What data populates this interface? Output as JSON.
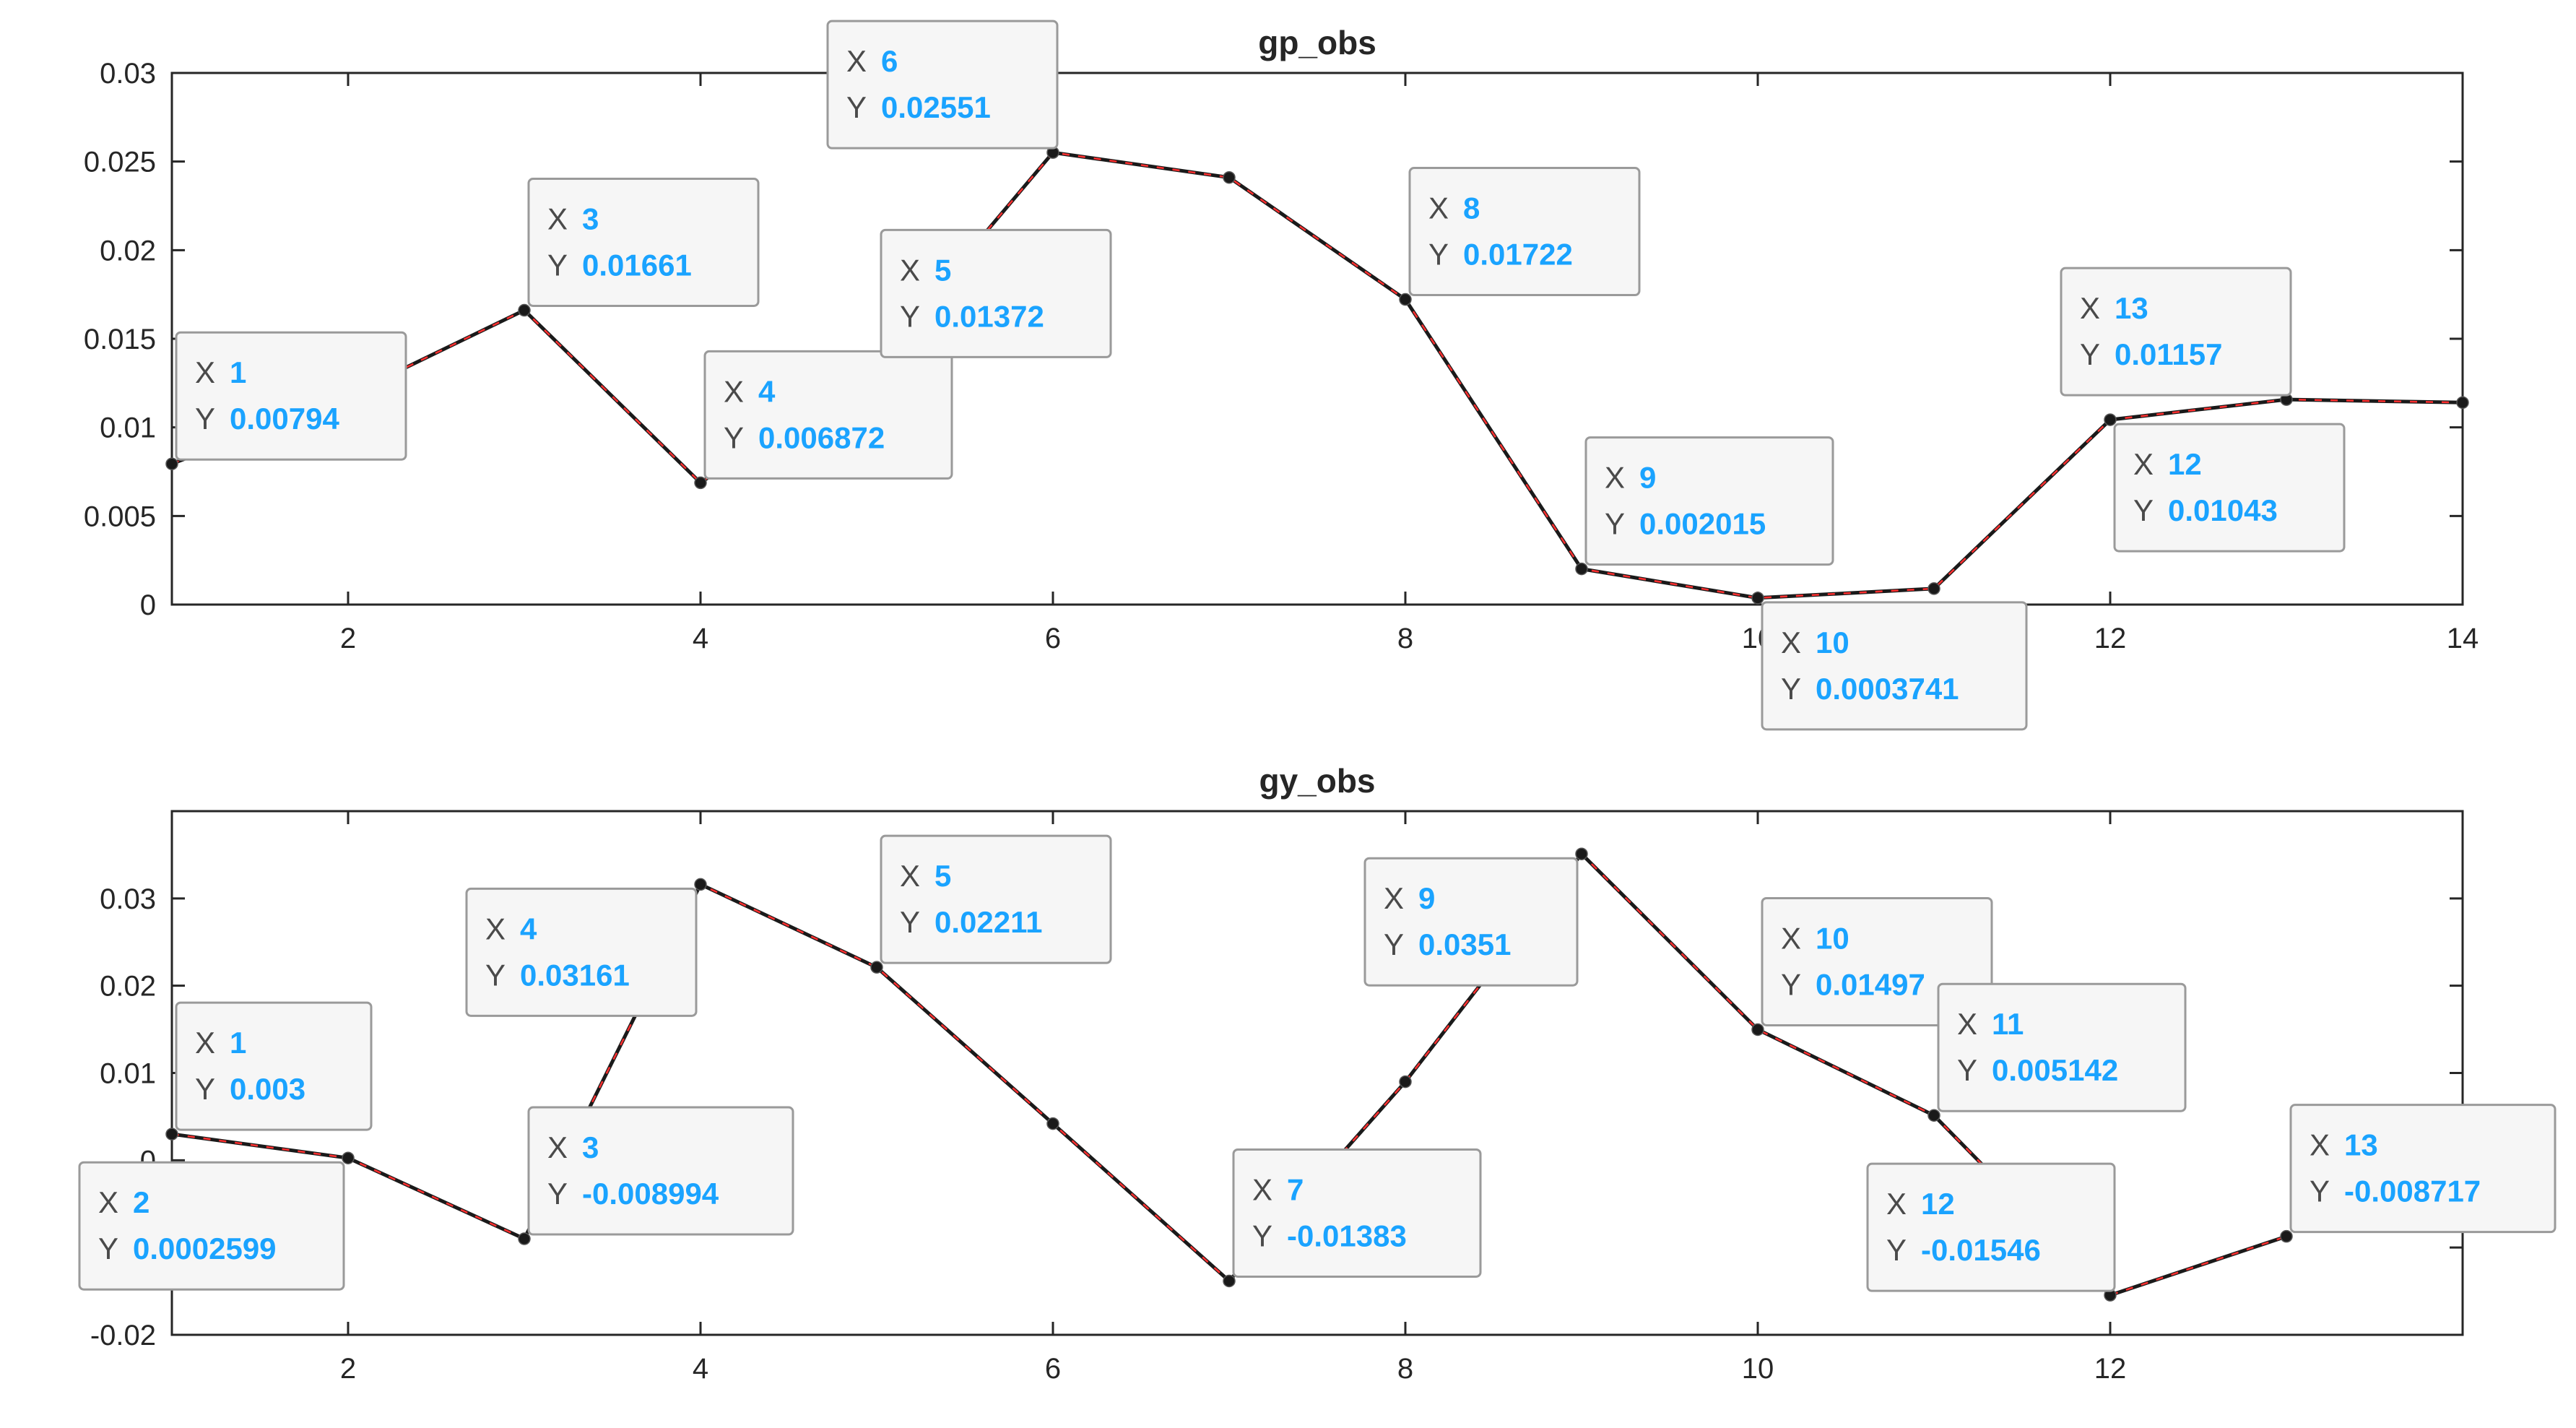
{
  "chart_data": [
    {
      "type": "line",
      "title": "gp_obs",
      "x": [
        1,
        2,
        3,
        4,
        5,
        6,
        7,
        8,
        9,
        10,
        11,
        12,
        13,
        14
      ],
      "series": [
        {
          "values": [
            0.00794,
            0.0118,
            0.01661,
            0.006872,
            0.01372,
            0.02551,
            0.0241,
            0.01722,
            0.002015,
            0.0003741,
            0.0009,
            0.01043,
            0.01157,
            0.0114
          ],
          "colors": {
            "line": "#1a1a1a",
            "dash": "#ff3030",
            "marker": "#1a1a1a"
          }
        }
      ],
      "xlim": [
        1,
        14
      ],
      "ylim": [
        0,
        0.03
      ],
      "xticks": [
        2,
        4,
        6,
        8,
        10,
        12,
        14
      ],
      "xtick_labels": [
        "2",
        "4",
        "6",
        "8",
        "10",
        "12",
        "14"
      ],
      "yticks": [
        0,
        0.005,
        0.01,
        0.015,
        0.02,
        0.025,
        0.03
      ],
      "ytick_labels": [
        "0",
        "0.005",
        "0.01",
        "0.015",
        "0.02",
        "0.025",
        "0.03"
      ],
      "grid": false,
      "datatips": [
        {
          "x": "1",
          "y": "0.00794",
          "placement": "upper-right"
        },
        {
          "x": "3",
          "y": "0.01661",
          "placement": "upper-right"
        },
        {
          "x": "4",
          "y": "0.006872",
          "placement": "upper-right"
        },
        {
          "x": "5",
          "y": "0.01372",
          "placement": "upper-right"
        },
        {
          "x": "6",
          "y": "0.02551",
          "placement": "upper-left"
        },
        {
          "x": "8",
          "y": "0.01722",
          "placement": "upper-right"
        },
        {
          "x": "9",
          "y": "0.002015",
          "placement": "upper-right"
        },
        {
          "x": "10",
          "y": "0.0003741",
          "placement": "lower-right"
        },
        {
          "x": "12",
          "y": "0.01043",
          "placement": "lower-right"
        },
        {
          "x": "13",
          "y": "0.01157",
          "placement": "upper-left"
        }
      ]
    },
    {
      "type": "line",
      "title": "gy_obs",
      "x": [
        1,
        2,
        3,
        4,
        5,
        6,
        7,
        8,
        9,
        10,
        11,
        12,
        13
      ],
      "series": [
        {
          "values": [
            0.003,
            0.0002599,
            -0.008994,
            0.03161,
            0.02211,
            0.0042,
            -0.01383,
            0.009,
            0.0351,
            0.01497,
            0.005142,
            -0.01546,
            -0.008717
          ],
          "colors": {
            "line": "#1a1a1a",
            "dash": "#ff3030",
            "marker": "#1a1a1a"
          }
        }
      ],
      "xlim": [
        1,
        14
      ],
      "ylim": [
        -0.02,
        0.04
      ],
      "xticks": [
        2,
        4,
        6,
        8,
        10,
        12
      ],
      "xtick_labels": [
        "2",
        "4",
        "6",
        "8",
        "10",
        "12"
      ],
      "yticks": [
        0.01,
        0.02,
        0.03
      ],
      "ytick_labels": [
        "0.01",
        "0.02",
        "0.03"
      ],
      "ytick_marks": [
        -0.02,
        -0.01,
        0,
        0.01,
        0.02,
        0.03
      ],
      "partial_ytick_labels": [
        {
          "value": 0,
          "text": "0"
        },
        {
          "value": -0.01,
          "text": "-0"
        },
        {
          "value": -0.02,
          "text": "-0.02"
        }
      ],
      "grid": false,
      "datatips": [
        {
          "x": "1",
          "y": "0.003",
          "placement": "upper-right"
        },
        {
          "x": "2",
          "y": "0.0002599",
          "placement": "lower-left"
        },
        {
          "x": "3",
          "y": "-0.008994",
          "placement": "upper-right"
        },
        {
          "x": "4",
          "y": "0.03161",
          "placement": "lower-left"
        },
        {
          "x": "5",
          "y": "0.02211",
          "placement": "upper-right"
        },
        {
          "x": "7",
          "y": "-0.01383",
          "placement": "upper-right"
        },
        {
          "x": "9",
          "y": "0.0351",
          "placement": "lower-left"
        },
        {
          "x": "10",
          "y": "0.01497",
          "placement": "upper-right"
        },
        {
          "x": "11",
          "y": "0.005142",
          "placement": "upper-right"
        },
        {
          "x": "12",
          "y": "-0.01546",
          "placement": "upper-left"
        },
        {
          "x": "13",
          "y": "-0.008717",
          "placement": "upper-right"
        }
      ]
    }
  ]
}
